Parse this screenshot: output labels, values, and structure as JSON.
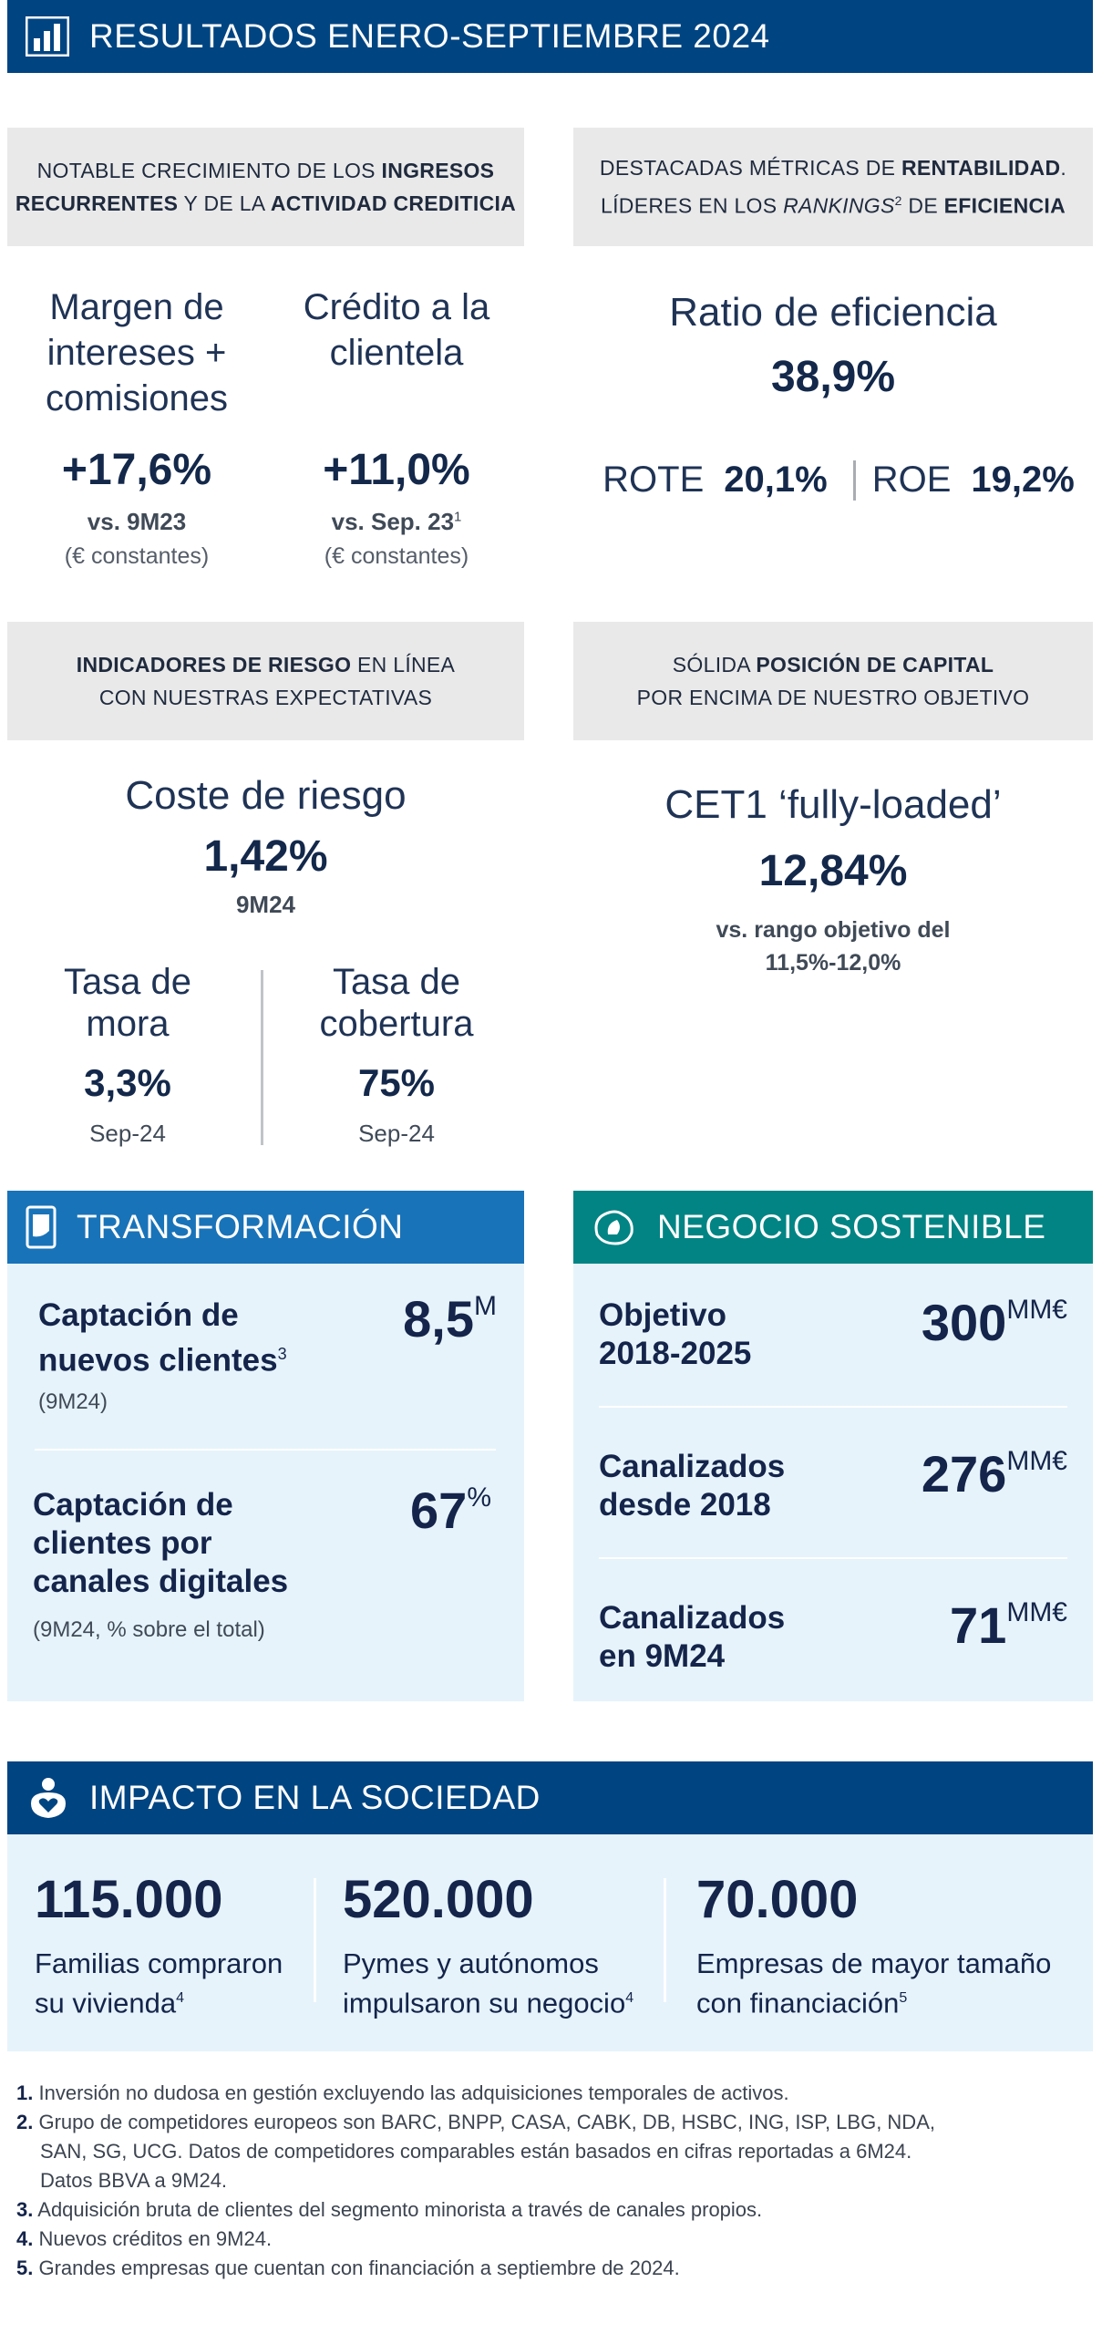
{
  "header": {
    "title": "RESULTADOS ENERO-SEPTIEMBRE 2024",
    "icon": "bar-chart-icon"
  },
  "colors": {
    "navy": "#004481",
    "blue": "#1973B8",
    "teal": "#028484",
    "gray": "#E9E9EA",
    "light": "#E6F3FB"
  },
  "box1": {
    "line1_a": "NOTABLE CRECIMIENTO DE LOS ",
    "line1_b": "INGRESOS",
    "line2_a": "RECURRENTES",
    "line2_b": " Y DE LA ",
    "line2_c": "ACTIVIDAD CREDITICIA"
  },
  "box2": {
    "line1_a": "DESTACADAS MÉTRICAS DE ",
    "line1_b": "RENTABILIDAD",
    "line1_c": ".",
    "line2_a": "LÍDERES EN LOS ",
    "line2_b": "RANKINGS",
    "line2_sup": "2",
    "line2_c": " DE ",
    "line2_d": "EFICIENCIA"
  },
  "margin": {
    "label1": "Margen de",
    "label2": "intereses +",
    "label3": "comisiones",
    "value": "+17,6%",
    "sub": "vs. 9M23",
    "note": "(€ constantes)"
  },
  "credit": {
    "label1": "Crédito a la",
    "label2": "clientela",
    "value": "+11,0%",
    "sub": "vs. Sep. 23",
    "sup": "1",
    "note": "(€ constantes)"
  },
  "efficiency": {
    "label": "Ratio de eficiencia",
    "value": "38,9%",
    "rote_label": "ROTE",
    "rote_value": "20,1%",
    "roe_label": "ROE",
    "roe_value": "19,2%"
  },
  "box3": {
    "line1_a": "INDICADORES DE RIESGO",
    "line1_b": " EN LÍNEA",
    "line2": "CON NUESTRAS EXPECTATIVAS"
  },
  "box4": {
    "line1_a": "SÓLIDA ",
    "line1_b": "POSICIÓN DE CAPITAL",
    "line2": "POR ENCIMA DE NUESTRO OBJETIVO"
  },
  "risk": {
    "label": "Coste de riesgo",
    "value": "1,42%",
    "period": "9M24"
  },
  "npl": {
    "label1": "Tasa de",
    "label2": "mora",
    "value": "3,3%",
    "period": "Sep-24"
  },
  "coverage": {
    "label1": "Tasa de",
    "label2": "cobertura",
    "value": "75%",
    "period": "Sep-24"
  },
  "cet1": {
    "label": "CET1 ‘fully-loaded’",
    "value": "12,84%",
    "sub1": "vs. rango objetivo del",
    "sub2": "11,5%-12,0%"
  },
  "transform": {
    "title": "TRANSFORMACIÓN",
    "icon": "mobile-phone-icon",
    "item1": {
      "label1": "Captación de",
      "label2": "nuevos clientes",
      "sup": "3",
      "note": "(9M24)",
      "value": "8,5",
      "unit": "M"
    },
    "item2": {
      "label1": "Captación de",
      "label2": "clientes por",
      "label3": "canales digitales",
      "note": "(9M24, % sobre el total)",
      "value": "67",
      "unit": "%"
    }
  },
  "sustain": {
    "title": "NEGOCIO SOSTENIBLE",
    "icon": "leaf-hand-icon",
    "item1": {
      "label1": "Objetivo",
      "label2": "2018-2025",
      "value": "300",
      "unit": "MM€"
    },
    "item2": {
      "label1": "Canalizados",
      "label2": "desde 2018",
      "value": "276",
      "unit": "MM€"
    },
    "item3": {
      "label1": "Canalizados",
      "label2": "en 9M24",
      "value": "71",
      "unit": "MM€"
    }
  },
  "impact": {
    "title": "IMPACTO EN LA SOCIEDAD",
    "icon": "people-heart-icon",
    "stats": [
      {
        "value": "115.000",
        "label1": "Familias compraron",
        "label2": "su vivienda",
        "sup": "4"
      },
      {
        "value": "520.000",
        "label1": "Pymes y autónomos",
        "label2": "impulsaron su negocio",
        "sup": "4"
      },
      {
        "value": "70.000",
        "label1": "Empresas de mayor tamaño",
        "label2": "con financiación",
        "sup": "5"
      }
    ]
  },
  "footnotes": [
    {
      "num": "1.",
      "text": "Inversión no dudosa en gestión excluyendo las adquisiciones temporales de activos."
    },
    {
      "num": "2.",
      "text": "Grupo de competidores europeos son BARC, BNPP, CASA, CABK, DB, HSBC, ING, ISP, LBG, NDA,",
      "text2": "SAN, SG, UCG. Datos de competidores comparables están basados en cifras reportadas a 6M24.",
      "text3": "Datos BBVA a 9M24."
    },
    {
      "num": "3.",
      "text": "Adquisición bruta de clientes del segmento minorista a través de canales propios."
    },
    {
      "num": "4.",
      "text": "Nuevos créditos en 9M24."
    },
    {
      "num": "5.",
      "text": "Grandes empresas que cuentan con financiación a septiembre de 2024."
    }
  ]
}
